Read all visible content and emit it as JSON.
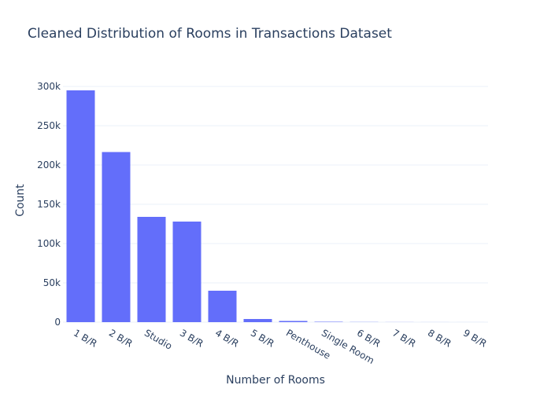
{
  "chart_data": {
    "type": "bar",
    "title": "Cleaned Distribution of Rooms in Transactions Dataset",
    "xlabel": "Number of Rooms",
    "ylabel": "Count",
    "categories": [
      "1 B/R",
      "2 B/R",
      "Studio",
      "3 B/R",
      "4 B/R",
      "5 B/R",
      "Penthouse",
      "Single Room",
      "6 B/R",
      "7 B/R",
      "8 B/R",
      "9 B/R"
    ],
    "values": [
      295000,
      216500,
      134000,
      128000,
      40000,
      4000,
      1500,
      500,
      200,
      100,
      50,
      20
    ],
    "ylim": [
      0,
      310000
    ],
    "yticks": [
      0,
      50000,
      100000,
      150000,
      200000,
      250000,
      300000
    ],
    "ytick_labels": [
      "0",
      "50k",
      "100k",
      "150k",
      "200k",
      "250k",
      "300k"
    ],
    "grid": true,
    "bar_color": "#636efa",
    "grid_color": "#ebf0f8"
  }
}
